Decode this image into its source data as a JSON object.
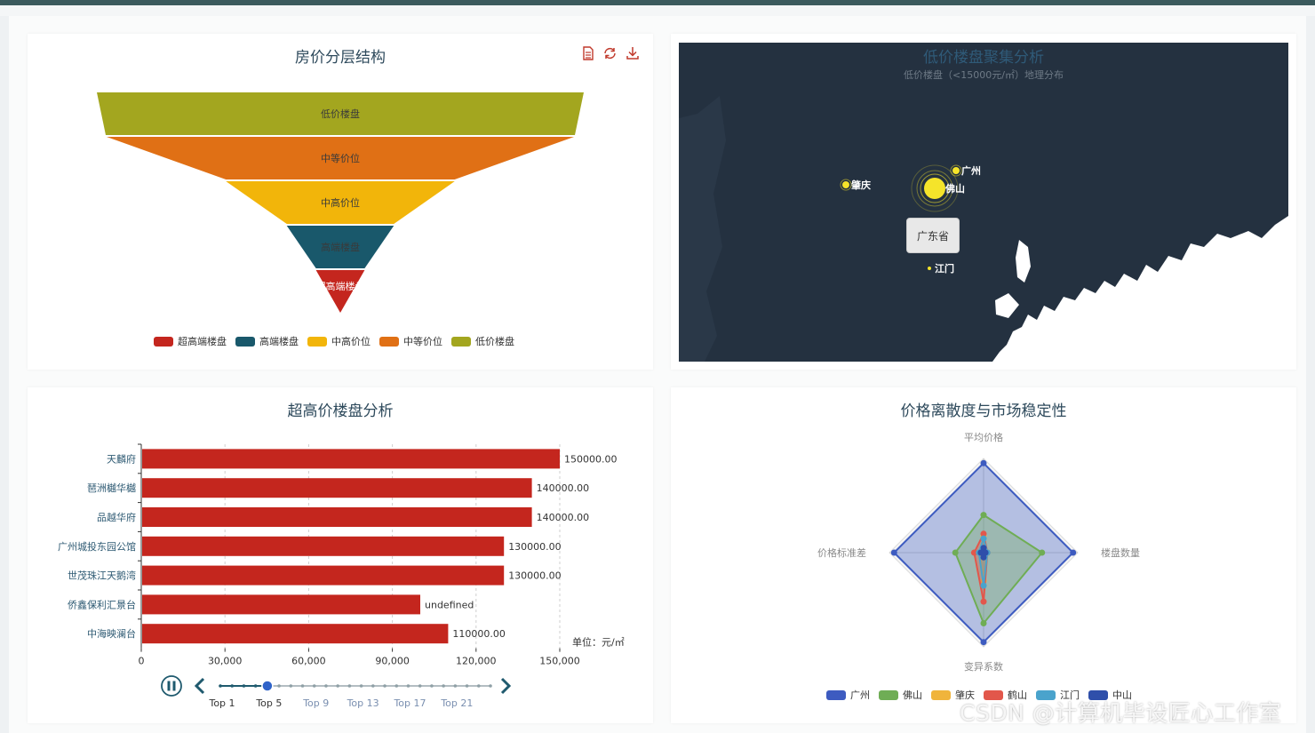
{
  "panels": {
    "funnel": {
      "title": "房价分层结构",
      "toolbox": [
        "data-view-icon",
        "refresh-icon",
        "download-icon"
      ]
    },
    "map": {
      "title": "低价楼盘聚集分析",
      "subtitle": "低价楼盘（<15000元/㎡）地理分布",
      "tooltip": "广东省",
      "cities": [
        {
          "name": "广州",
          "size": "small"
        },
        {
          "name": "佛山",
          "size": "large"
        },
        {
          "name": "肇庆",
          "size": "small"
        },
        {
          "name": "江门",
          "size": "tiny"
        }
      ],
      "colors": {
        "background": "#243140",
        "point": "#f5e42a",
        "land": "#ffffff"
      }
    },
    "bar": {
      "title": "超高价楼盘分析",
      "unit": "单位：元/㎡",
      "timeline": {
        "labels": [
          "Top 1",
          "Top 5",
          "Top 9",
          "Top 13",
          "Top 17",
          "Top 21"
        ],
        "current_index": 1,
        "play_icon": "pause-icon",
        "prev_icon": "chevron-left-icon",
        "next_icon": "chevron-right-icon"
      }
    },
    "radar": {
      "title": "价格离散度与市场稳定性"
    }
  },
  "watermark": "CSDN @计算机毕设匠心工作室",
  "chart_data": [
    {
      "type": "funnel",
      "title": "房价分层结构",
      "categories": [
        "低价楼盘",
        "中等价位",
        "中高价位",
        "高端楼盘",
        "超高端楼盘"
      ],
      "relative_widths": [
        1.0,
        0.96,
        0.47,
        0.22,
        0.1
      ],
      "colors": [
        "#a3a61f",
        "#e07015",
        "#f2b50a",
        "#19586b",
        "#c4261e"
      ],
      "legend": [
        "超高端楼盘",
        "高端楼盘",
        "中高价位",
        "中等价位",
        "低价楼盘"
      ],
      "legend_colors": [
        "#c4261e",
        "#19586b",
        "#f2b50a",
        "#e07015",
        "#a3a61f"
      ],
      "legend_position": "bottom"
    },
    {
      "type": "bar",
      "orientation": "horizontal",
      "title": "超高价楼盘分析",
      "categories": [
        "天麟府",
        "琶洲樾华樾",
        "品越华府",
        "广州城投东园公馆",
        "世茂珠江天鹅湾",
        "侨鑫保利汇景台",
        "中海映澜台"
      ],
      "values": [
        150000,
        140000,
        140000,
        130000,
        130000,
        100000,
        110000
      ],
      "data_labels": [
        "150000.00",
        "140000.00",
        "140000.00",
        "130000.00",
        "130000.00",
        "undefined",
        "110000.00"
      ],
      "xlim": [
        0,
        150000
      ],
      "x_ticks": [
        "0",
        "30,000",
        "60,000",
        "90,000",
        "120,000",
        "150,000"
      ],
      "x_tick_values": [
        0,
        30000,
        60000,
        90000,
        120000,
        150000
      ],
      "xlabel": "单位：元/㎡",
      "color": "#c4261e",
      "grid": true
    },
    {
      "type": "radar",
      "title": "价格离散度与市场稳定性",
      "indicators": [
        "平均价格",
        "楼盘数量",
        "变异系数",
        "价格标准差"
      ],
      "max": 1,
      "series": [
        {
          "name": "广州",
          "color": "#3d5bc0",
          "values": [
            0.95,
            0.95,
            0.95,
            0.95
          ]
        },
        {
          "name": "佛山",
          "color": "#6fad55",
          "values": [
            0.4,
            0.62,
            0.75,
            0.3
          ]
        },
        {
          "name": "肇庆",
          "color": "#f0b43c",
          "values": [
            0.18,
            0.04,
            0.3,
            0.04
          ]
        },
        {
          "name": "鹤山",
          "color": "#e2574b",
          "values": [
            0.2,
            0.04,
            0.52,
            0.1
          ]
        },
        {
          "name": "江门",
          "color": "#4aa3cc",
          "values": [
            0.15,
            0.04,
            0.35,
            0.05
          ]
        },
        {
          "name": "中山",
          "color": "#2f4faa",
          "values": [
            0.05,
            0.02,
            0.05,
            0.03
          ]
        }
      ],
      "legend_position": "bottom"
    }
  ]
}
